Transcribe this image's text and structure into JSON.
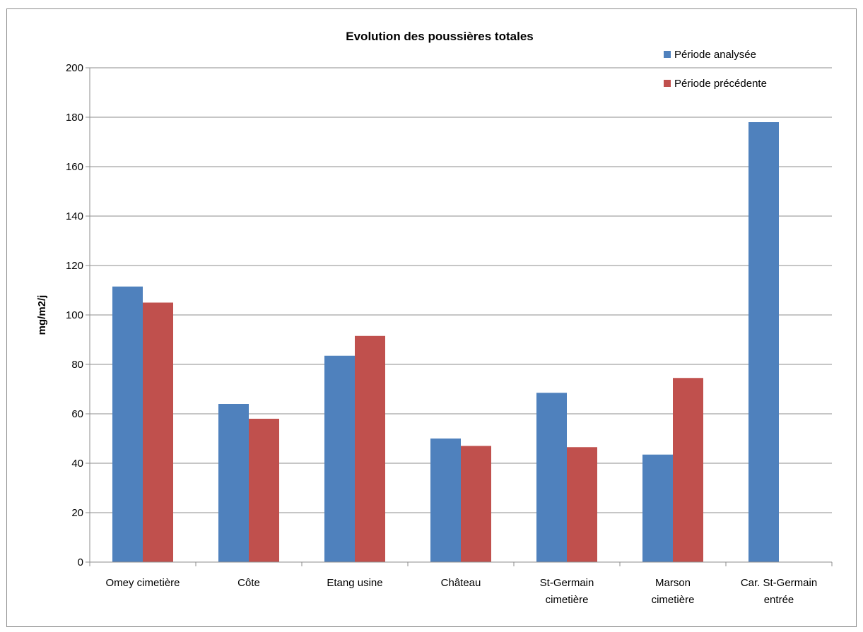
{
  "chart_data": {
    "type": "bar",
    "title": "Evolution des poussières totales",
    "xlabel": "",
    "ylabel": "mg/m2/j",
    "ylim": [
      0,
      200
    ],
    "yticks": [
      0,
      20,
      40,
      60,
      80,
      100,
      120,
      140,
      160,
      180,
      200
    ],
    "grid": true,
    "legend_position": "top-right",
    "categories": [
      [
        "Omey cimetière"
      ],
      [
        "Côte"
      ],
      [
        "Etang usine"
      ],
      [
        "Château"
      ],
      [
        "St-Germain",
        "cimetière"
      ],
      [
        "Marson",
        "cimetière"
      ],
      [
        "Car. St-Germain",
        "entrée"
      ]
    ],
    "series": [
      {
        "name": "Période analysée",
        "color": "#4f81bd",
        "values": [
          111.5,
          64,
          83.5,
          50,
          68.5,
          43.5,
          178
        ]
      },
      {
        "name": "Période précédente",
        "color": "#c0504d",
        "values": [
          105,
          58,
          91.5,
          47,
          46.5,
          74.5,
          null
        ]
      }
    ]
  }
}
